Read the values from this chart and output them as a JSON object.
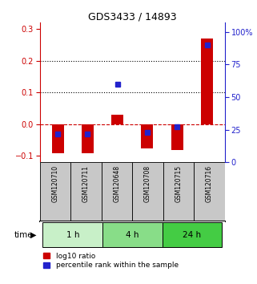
{
  "title": "GDS3433 / 14893",
  "samples": [
    "GSM120710",
    "GSM120711",
    "GSM120648",
    "GSM120708",
    "GSM120715",
    "GSM120716"
  ],
  "log10_ratio": [
    -0.09,
    -0.09,
    0.03,
    -0.075,
    -0.082,
    0.27
  ],
  "percentile_rank": [
    22,
    22,
    60,
    23,
    27,
    90
  ],
  "groups": [
    {
      "label": "1 h",
      "start": 0,
      "end": 2,
      "color": "#c8f0c8"
    },
    {
      "label": "4 h",
      "start": 2,
      "end": 4,
      "color": "#88dd88"
    },
    {
      "label": "24 h",
      "start": 4,
      "end": 6,
      "color": "#44cc44"
    }
  ],
  "bar_color": "#cc0000",
  "blue_color": "#2222cc",
  "ylim_left": [
    -0.12,
    0.32
  ],
  "ylim_right": [
    0,
    107
  ],
  "yticks_left": [
    -0.1,
    0.0,
    0.1,
    0.2,
    0.3
  ],
  "yticks_right": [
    0,
    25,
    50,
    75,
    100
  ],
  "hlines": [
    0.1,
    0.2
  ],
  "zero_line": 0.0,
  "background_color": "#ffffff",
  "plot_bg": "#ffffff",
  "label_log10": "log10 ratio",
  "label_pct": "percentile rank within the sample",
  "time_label": "time"
}
